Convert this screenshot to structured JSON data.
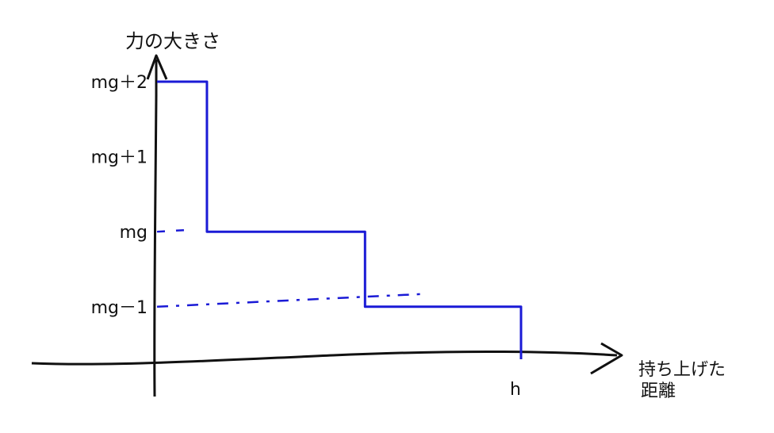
{
  "chart_data": {
    "type": "line",
    "ylabel": "力の大きさ",
    "xlabel": "持ち上げた距離",
    "xlabel_lines": [
      "持ち上げた",
      "距離"
    ],
    "y_ticks": [
      "mg＋2",
      "mg＋1",
      "mg",
      "mg－1"
    ],
    "x_ticks": [
      "h"
    ],
    "series": [
      {
        "x": [
          0,
          0.24,
          0.24,
          1,
          1,
          1.75,
          1.75
        ],
        "y": [
          2,
          2,
          0,
          0,
          -1,
          -1,
          -1.7
        ]
      }
    ],
    "xlim": [
      0,
      1.75
    ],
    "ylim": [
      -1.7,
      2
    ],
    "grid": false
  },
  "colors": {
    "series": "#1a1ad6",
    "axis": "#111111"
  }
}
